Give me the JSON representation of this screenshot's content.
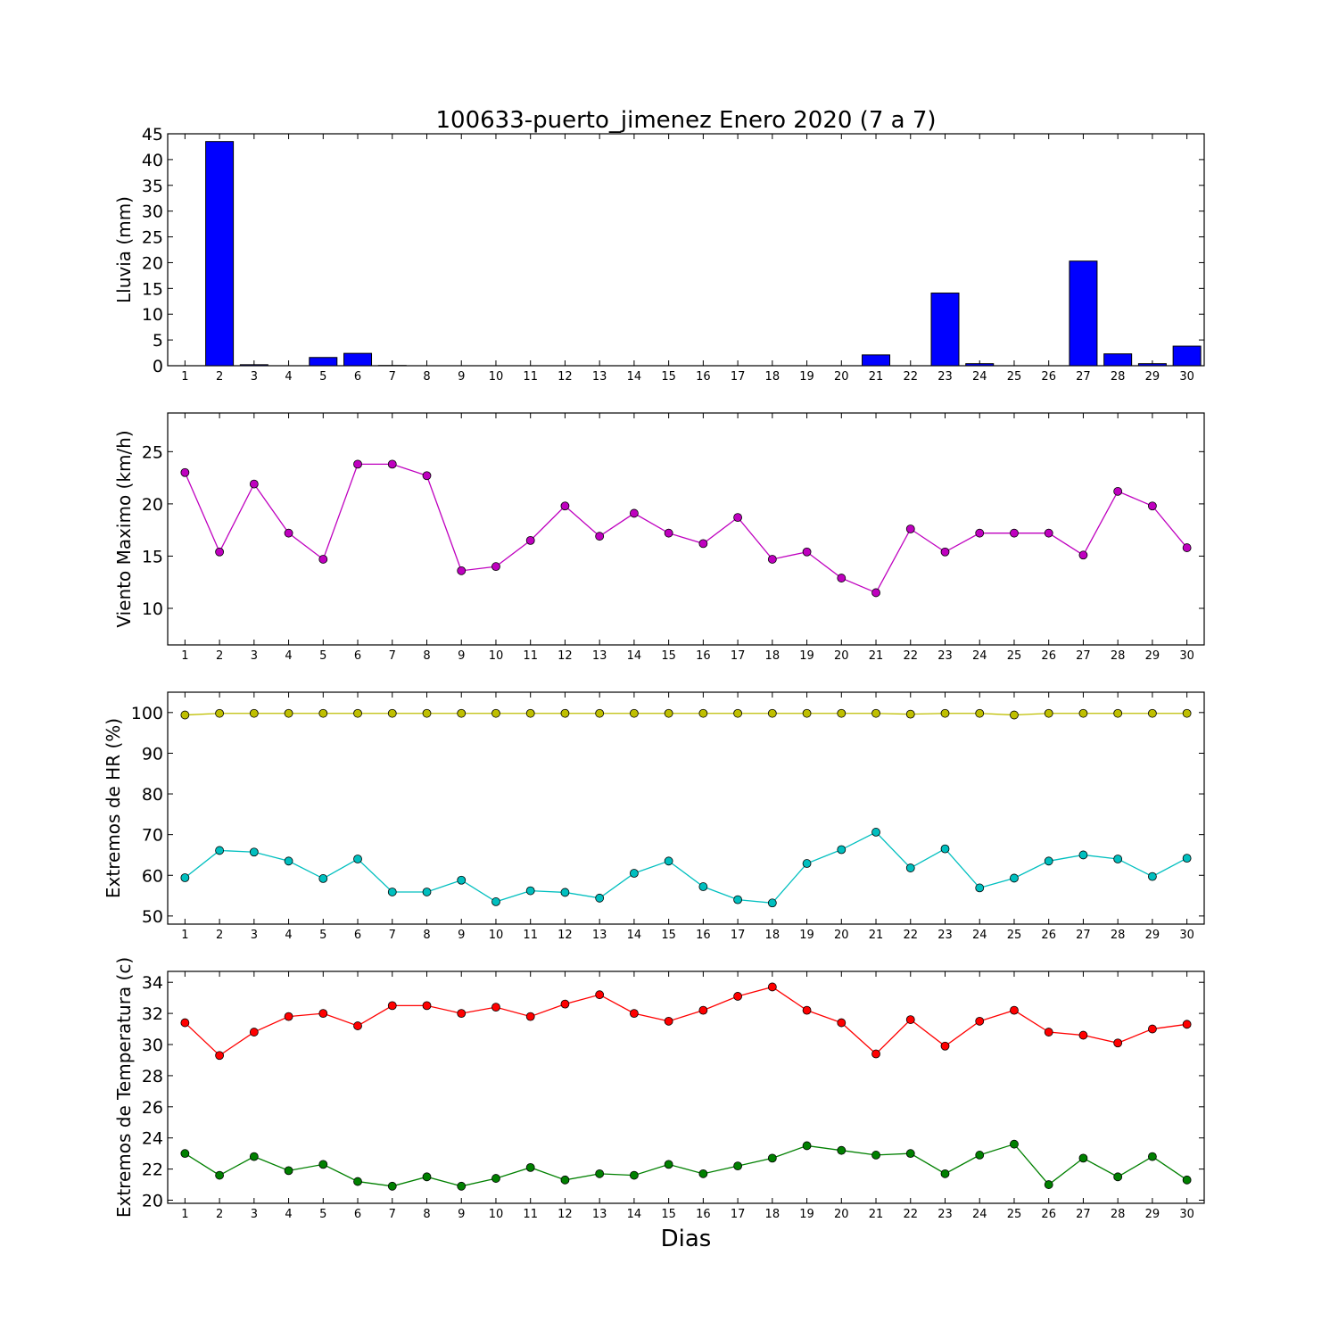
{
  "chart_data": [
    {
      "type": "bar",
      "title": "100633-puerto_jimenez Enero 2020  (7 a 7)",
      "ylabel": "Lluvia (mm)",
      "xlabel": "",
      "categories": [
        "1",
        "2",
        "3",
        "4",
        "5",
        "6",
        "7",
        "8",
        "9",
        "10",
        "11",
        "12",
        "13",
        "14",
        "15",
        "16",
        "17",
        "18",
        "19",
        "20",
        "21",
        "22",
        "23",
        "24",
        "25",
        "26",
        "27",
        "28",
        "29",
        "30"
      ],
      "values": [
        0,
        43.5,
        0.2,
        0,
        1.6,
        2.4,
        0.05,
        0,
        0,
        0,
        0,
        0,
        0,
        0,
        0,
        0,
        0,
        0,
        0,
        0,
        2.1,
        0,
        14.1,
        0.4,
        0,
        0,
        20.3,
        2.3,
        0.4,
        3.8
      ],
      "ylim": [
        0,
        45
      ],
      "yticks": [
        0,
        5,
        10,
        15,
        20,
        25,
        30,
        35,
        40,
        45
      ],
      "color": "#0000ff",
      "grid": false
    },
    {
      "type": "line",
      "title": "",
      "ylabel": "Viento Maximo (km/h)",
      "xlabel": "",
      "categories": [
        "1",
        "2",
        "3",
        "4",
        "5",
        "6",
        "7",
        "8",
        "9",
        "10",
        "11",
        "12",
        "13",
        "14",
        "15",
        "16",
        "17",
        "18",
        "19",
        "20",
        "21",
        "22",
        "23",
        "24",
        "25",
        "26",
        "27",
        "28",
        "29",
        "30"
      ],
      "series": [
        {
          "color": "#bf00bf",
          "values": [
            23.0,
            15.4,
            21.9,
            17.2,
            14.7,
            23.8,
            23.8,
            22.7,
            13.6,
            14.0,
            16.5,
            19.8,
            16.9,
            19.1,
            17.2,
            16.2,
            18.7,
            14.7,
            15.4,
            12.9,
            11.5,
            17.6,
            15.4,
            17.2,
            17.2,
            17.2,
            15.1,
            21.2,
            19.8,
            15.8
          ]
        }
      ],
      "ylim": [
        6.5,
        28.7
      ],
      "yticks": [
        10,
        15,
        20,
        25
      ],
      "grid": false
    },
    {
      "type": "line",
      "title": "",
      "ylabel": "Extremos de HR (%)",
      "xlabel": "",
      "categories": [
        "1",
        "2",
        "3",
        "4",
        "5",
        "6",
        "7",
        "8",
        "9",
        "10",
        "11",
        "12",
        "13",
        "14",
        "15",
        "16",
        "17",
        "18",
        "19",
        "20",
        "21",
        "22",
        "23",
        "24",
        "25",
        "26",
        "27",
        "28",
        "29",
        "30"
      ],
      "series": [
        {
          "color": "#bfbf00",
          "values": [
            99.4,
            99.8,
            99.8,
            99.8,
            99.8,
            99.8,
            99.8,
            99.8,
            99.8,
            99.8,
            99.8,
            99.8,
            99.8,
            99.8,
            99.8,
            99.8,
            99.8,
            99.8,
            99.8,
            99.8,
            99.8,
            99.6,
            99.8,
            99.8,
            99.4,
            99.8,
            99.8,
            99.8,
            99.8,
            99.8
          ]
        },
        {
          "color": "#00bfbf",
          "values": [
            59.4,
            66.1,
            65.7,
            63.5,
            59.2,
            64.0,
            55.9,
            55.9,
            58.8,
            53.5,
            56.2,
            55.8,
            54.4,
            60.5,
            63.5,
            57.2,
            54.0,
            53.2,
            62.9,
            66.3,
            70.6,
            61.8,
            66.5,
            56.9,
            59.3,
            63.5,
            65.0,
            64.0,
            59.7,
            64.2
          ]
        }
      ],
      "ylim": [
        48,
        105
      ],
      "yticks": [
        50,
        60,
        70,
        80,
        90,
        100
      ],
      "grid": false
    },
    {
      "type": "line",
      "title": "",
      "ylabel": "Extremos de Temperatura (c)",
      "xlabel": "Dias",
      "categories": [
        "1",
        "2",
        "3",
        "4",
        "5",
        "6",
        "7",
        "8",
        "9",
        "10",
        "11",
        "12",
        "13",
        "14",
        "15",
        "16",
        "17",
        "18",
        "19",
        "20",
        "21",
        "22",
        "23",
        "24",
        "25",
        "26",
        "27",
        "28",
        "29",
        "30"
      ],
      "series": [
        {
          "color": "#ff0000",
          "values": [
            31.4,
            29.3,
            30.8,
            31.8,
            32.0,
            31.2,
            32.5,
            32.5,
            32.0,
            32.4,
            31.8,
            32.6,
            33.2,
            32.0,
            31.5,
            32.2,
            33.1,
            33.7,
            32.2,
            31.4,
            29.4,
            31.6,
            29.9,
            31.5,
            32.2,
            30.8,
            30.6,
            30.1,
            31.0,
            31.3
          ]
        },
        {
          "color": "#008000",
          "values": [
            23.0,
            21.6,
            22.8,
            21.9,
            22.3,
            21.2,
            20.9,
            21.5,
            20.9,
            21.4,
            22.1,
            21.3,
            21.7,
            21.6,
            22.3,
            21.7,
            22.2,
            22.7,
            23.5,
            23.2,
            22.9,
            23.0,
            21.7,
            22.9,
            23.6,
            21.0,
            22.7,
            21.5,
            22.8,
            21.3
          ]
        }
      ],
      "ylim": [
        19.8,
        34.7
      ],
      "yticks": [
        20,
        22,
        24,
        26,
        28,
        30,
        32,
        34
      ],
      "grid": false
    }
  ]
}
